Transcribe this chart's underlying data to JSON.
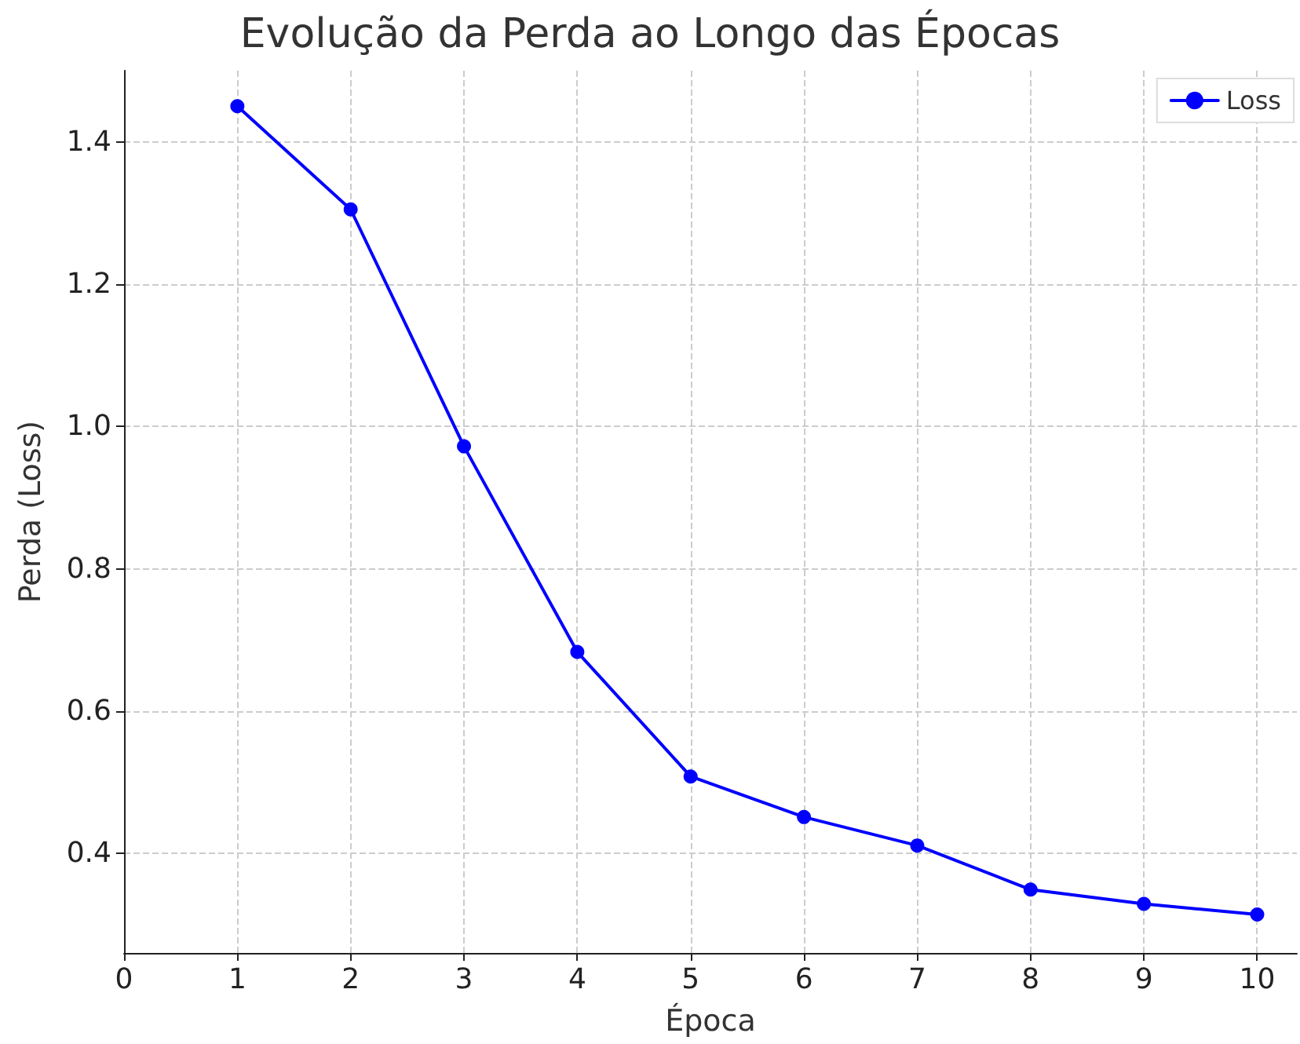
{
  "chart_data": {
    "type": "line",
    "title": "Evolução da Perda ao Longo das Épocas",
    "xlabel": "Época",
    "ylabel": "Perda (Loss)",
    "x": [
      1,
      2,
      3,
      4,
      5,
      6,
      7,
      8,
      9,
      10
    ],
    "series": [
      {
        "name": "Loss",
        "color": "#0000ff",
        "values": [
          1.45,
          1.305,
          0.972,
          0.683,
          0.508,
          0.451,
          0.411,
          0.349,
          0.329,
          0.314
        ]
      }
    ],
    "xlim": [
      0,
      10.35
    ],
    "xticks": [
      0,
      1,
      2,
      3,
      4,
      5,
      6,
      7,
      8,
      9,
      10
    ],
    "ylim": [
      0.26,
      1.5
    ],
    "yticks": [
      0.4,
      0.6,
      0.8,
      {
        "value": 1,
        "label": "1.0"
      },
      1.2,
      1.4
    ],
    "grid": true,
    "legend": "top right",
    "marker": "circle",
    "line_style": "solid"
  }
}
